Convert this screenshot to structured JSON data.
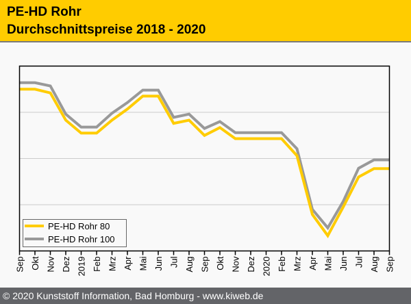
{
  "header": {
    "title_line1": "PE-HD Rohr",
    "title_line2": "Durchschnittspreise 2018 - 2020",
    "background_color": "#ffcc00"
  },
  "footer": {
    "text": "© 2020 Kunststoff Information, Bad Homburg - www.kiweb.de"
  },
  "chart_data": {
    "type": "line",
    "title": "PE-HD Rohr Durchschnittspreise 2018 - 2020",
    "xlabel": "",
    "ylabel": "",
    "y_tick_labels_shown": false,
    "ylim": [
      0,
      4
    ],
    "y_units": "relative index (gridline intervals; no axis labels shown)",
    "grid": true,
    "legend_position": "bottom-left",
    "x": [
      "Sep",
      "Okt",
      "Nov",
      "Dez",
      "2019",
      "Feb",
      "Mrz",
      "Apr",
      "Mai",
      "Jun",
      "Jul",
      "Aug",
      "Sep",
      "Okt",
      "Nov",
      "Dez",
      "2020",
      "Feb",
      "Mrz",
      "Apr",
      "Mai",
      "Jun",
      "Jul",
      "Aug",
      "Sep"
    ],
    "series": [
      {
        "name": "PE-HD Rohr 80",
        "color": "#ffcc00",
        "values": [
          3.5,
          3.5,
          3.42,
          2.83,
          2.55,
          2.55,
          2.83,
          3.07,
          3.35,
          3.35,
          2.76,
          2.83,
          2.5,
          2.67,
          2.43,
          2.43,
          2.43,
          2.43,
          2.06,
          0.79,
          0.33,
          0.95,
          1.6,
          1.78,
          1.78
        ]
      },
      {
        "name": "PE-HD Rohr 100",
        "color": "#999999",
        "values": [
          3.64,
          3.64,
          3.57,
          2.96,
          2.68,
          2.68,
          2.98,
          3.21,
          3.48,
          3.48,
          2.89,
          2.96,
          2.65,
          2.8,
          2.56,
          2.56,
          2.56,
          2.56,
          2.21,
          0.9,
          0.5,
          1.07,
          1.79,
          1.97,
          1.97
        ]
      }
    ]
  }
}
